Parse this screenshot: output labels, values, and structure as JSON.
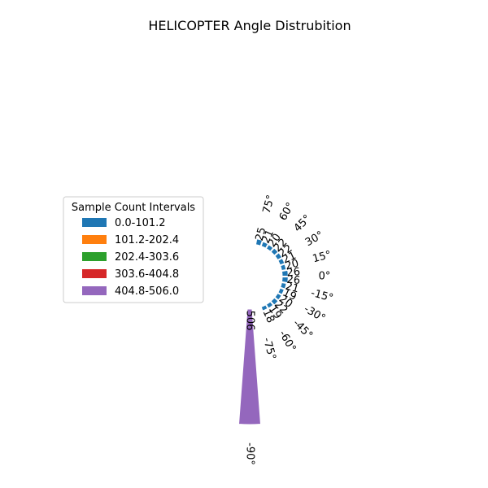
{
  "chart_data": {
    "type": "polar-bar",
    "title": "HELICOPTER Angle Distrubition",
    "angle_ticks": [
      "75°",
      "60°",
      "45°",
      "30°",
      "15°",
      "0°",
      "-15°",
      "-30°",
      "-45°",
      "-60°",
      "-75°",
      "-90°"
    ],
    "angle_tick_values": [
      75,
      60,
      45,
      30,
      15,
      0,
      -15,
      -30,
      -45,
      -60,
      -75,
      -90
    ],
    "bars": [
      {
        "angle": 75,
        "count": 25,
        "label": "25"
      },
      {
        "angle": 65,
        "count": 21,
        "label": "21"
      },
      {
        "angle": 55,
        "count": 20,
        "label": "20"
      },
      {
        "angle": 45,
        "count": 22,
        "label": "22"
      },
      {
        "angle": 35,
        "count": 22,
        "label": "22"
      },
      {
        "angle": 25,
        "count": 21,
        "label": "21"
      },
      {
        "angle": 15,
        "count": 20,
        "label": "20"
      },
      {
        "angle": 5,
        "count": 26,
        "label": "26"
      },
      {
        "angle": -5,
        "count": 26,
        "label": "26"
      },
      {
        "angle": -15,
        "count": 21,
        "label": "21"
      },
      {
        "angle": -25,
        "count": 19,
        "label": "19"
      },
      {
        "angle": -35,
        "count": 20,
        "label": "20"
      },
      {
        "angle": -45,
        "count": 22,
        "label": "22"
      },
      {
        "angle": -55,
        "count": 19,
        "label": "19"
      },
      {
        "angle": -65,
        "count": 18,
        "label": "18"
      },
      {
        "angle": -90,
        "count": 506,
        "label": "506"
      }
    ],
    "legend": {
      "title": "Sample Count Intervals",
      "placement": "left",
      "items": [
        {
          "label": "0.0-101.2",
          "color": "#1f77b4"
        },
        {
          "label": "101.2-202.4",
          "color": "#ff7f0e"
        },
        {
          "label": "202.4-303.6",
          "color": "#2ca02c"
        },
        {
          "label": "303.6-404.8",
          "color": "#d62728"
        },
        {
          "label": "404.8-506.0",
          "color": "#9467bd"
        }
      ]
    }
  }
}
